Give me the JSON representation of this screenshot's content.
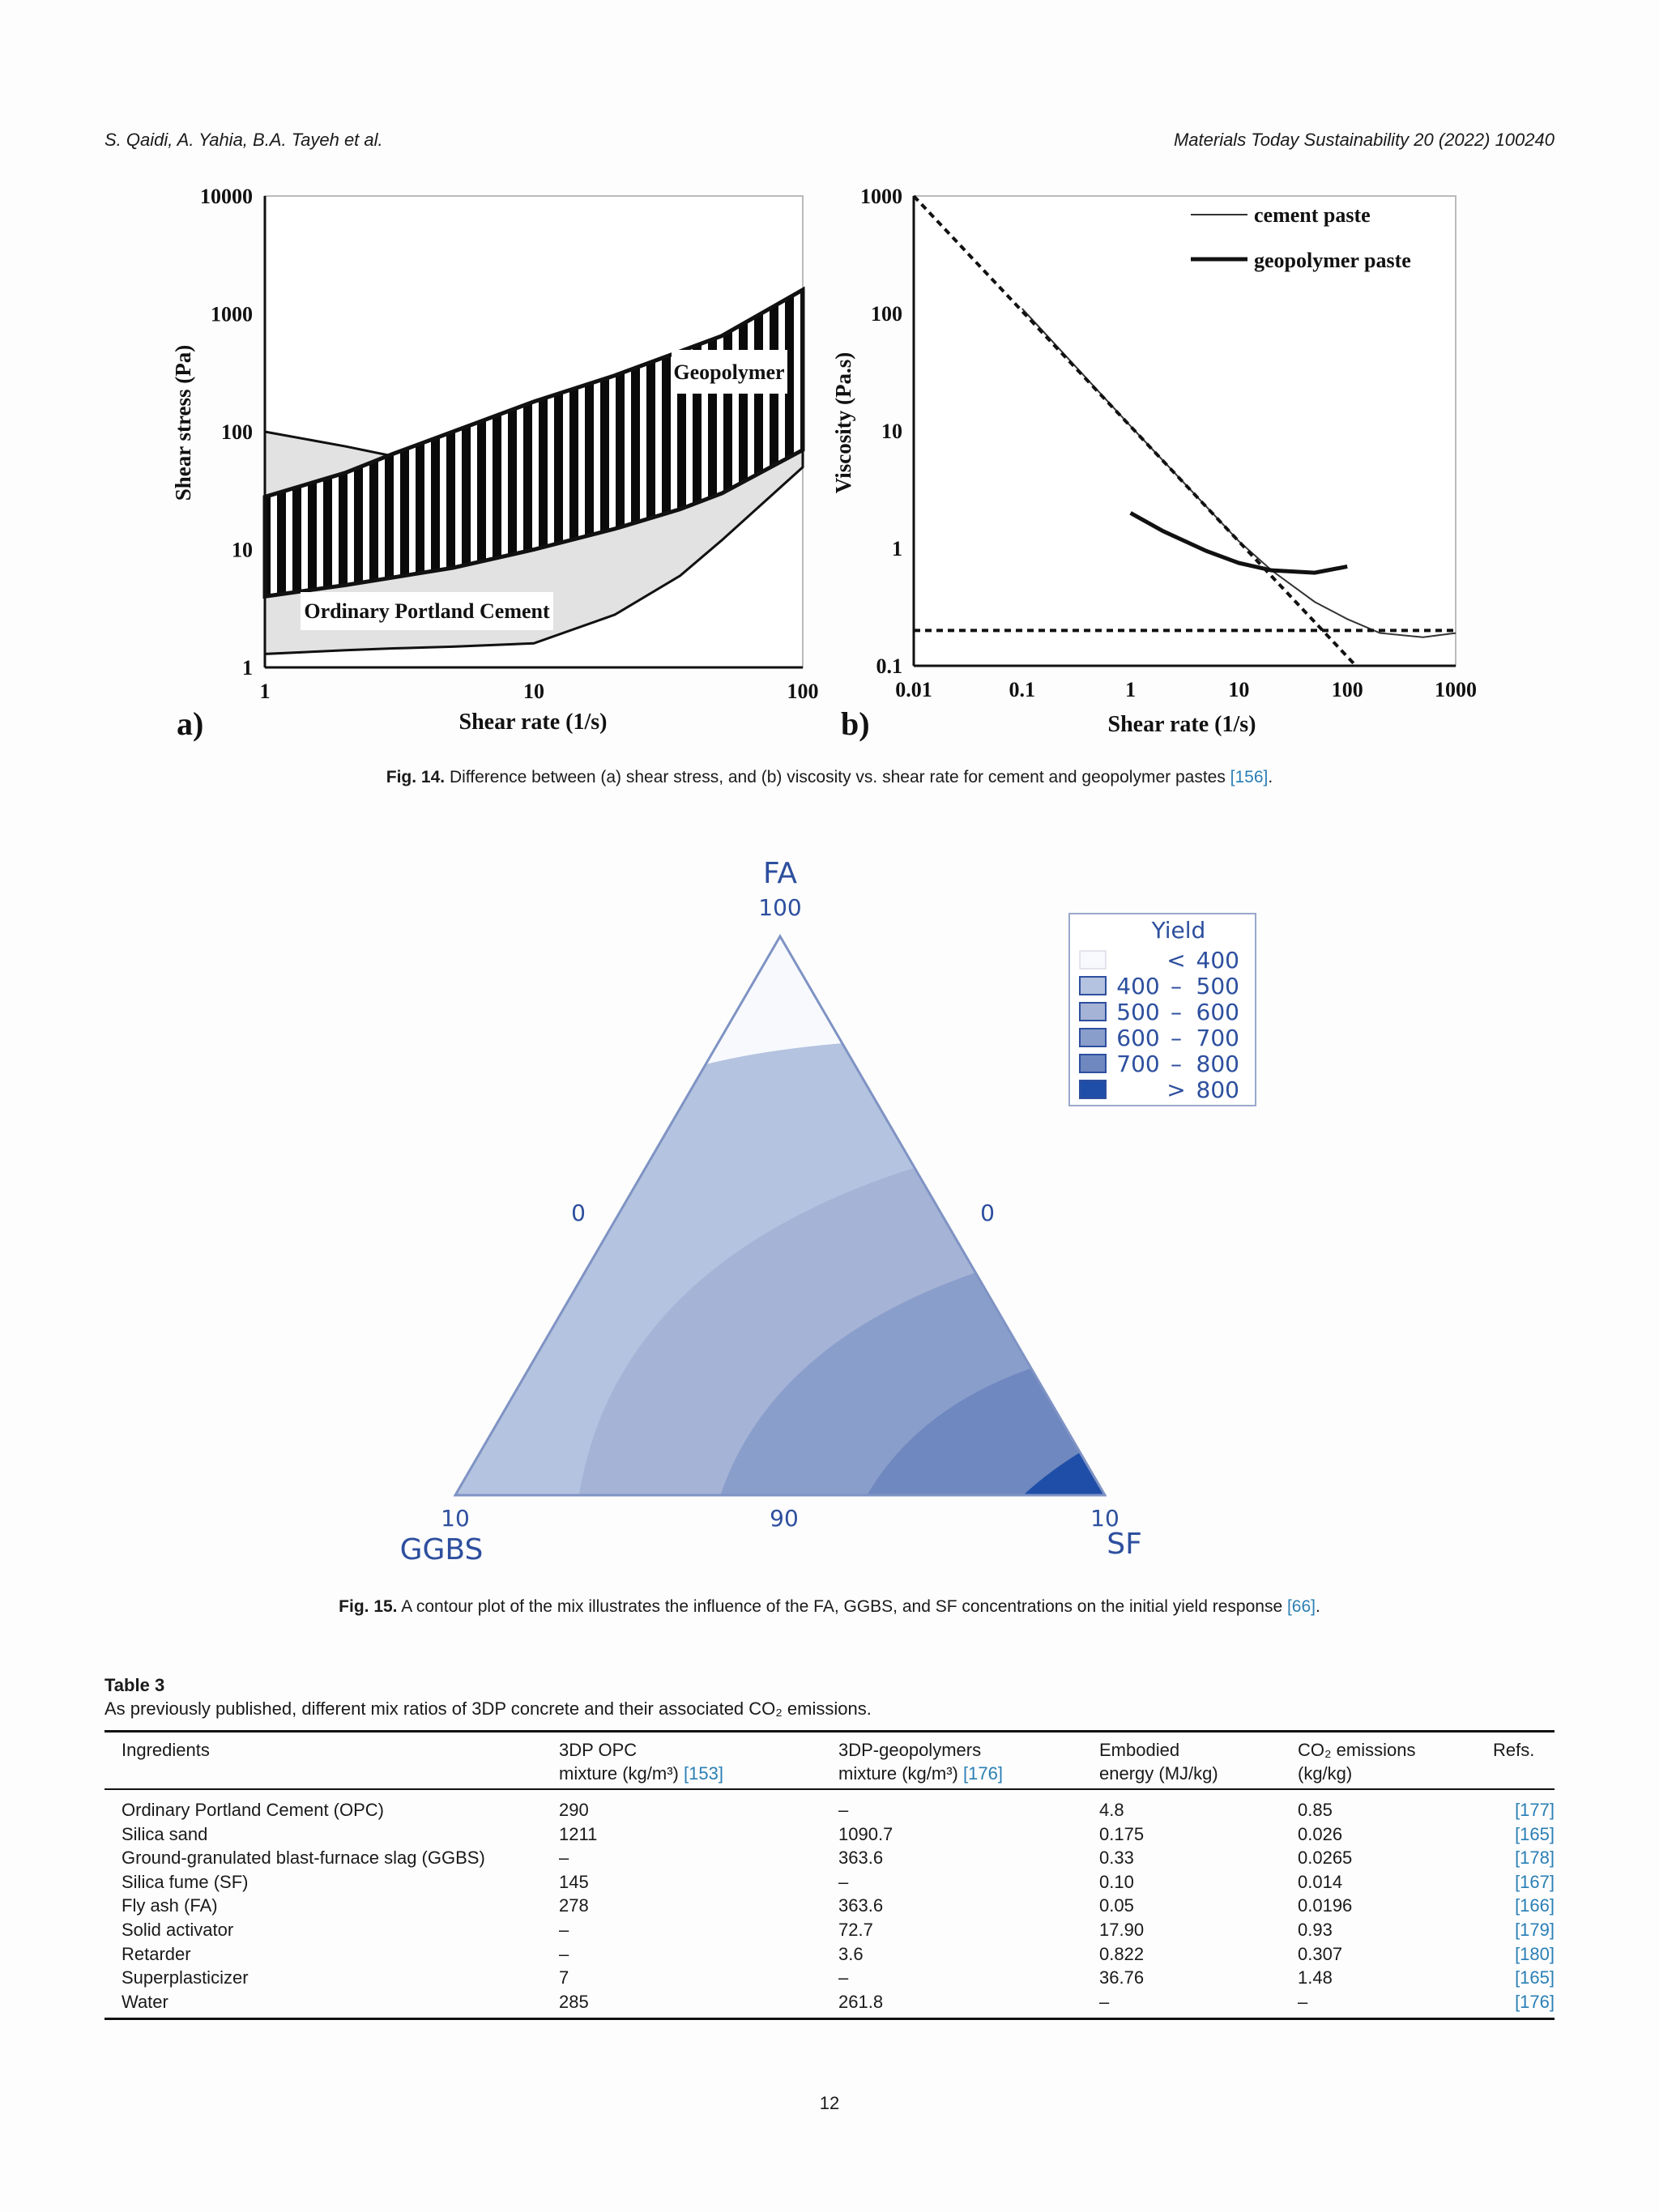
{
  "header": {
    "authors": "S. Qaidi, A. Yahia, B.A. Tayeh et al.",
    "journal": "Materials Today Sustainability 20 (2022) 100240"
  },
  "fig14": {
    "caption_label": "Fig. 14.",
    "caption_text": " Difference between (a) shear stress, and (b) viscosity vs. shear rate for cement and geopolymer pastes ",
    "caption_ref": "[156]",
    "caption_end": "."
  },
  "fig15": {
    "caption_label": "Fig. 15.",
    "caption_text": " A contour plot of the mix illustrates the influence of the FA, GGBS, and SF concentrations on the initial yield response ",
    "caption_ref": "[66]",
    "caption_end": "."
  },
  "chart_data": [
    {
      "type": "area",
      "panel_label": "a)",
      "title": "",
      "xlabel": "Shear rate (1/s)",
      "ylabel": "Shear stress (Pa)",
      "xscale": "log",
      "yscale": "log",
      "xlim": [
        1,
        100
      ],
      "ylim": [
        1,
        10000
      ],
      "xticks": [
        "1",
        "10",
        "100"
      ],
      "yticks": [
        "1",
        "10",
        "100",
        "1000",
        "10000"
      ],
      "bands": [
        {
          "name": "Ordinary Portland Cement",
          "fill": "#e2e2e2",
          "x": [
            1,
            2,
            3,
            5,
            10,
            20,
            35,
            50,
            100
          ],
          "upper": [
            100,
            75,
            62,
            62,
            65,
            80,
            100,
            115,
            180
          ],
          "lower": [
            1.3,
            1.4,
            1.45,
            1.5,
            1.6,
            2.8,
            6,
            12,
            50
          ]
        },
        {
          "name": "Geopolymer",
          "fill": "hatched",
          "x": [
            1,
            2,
            3,
            5,
            10,
            20,
            35,
            50,
            100
          ],
          "upper": [
            28,
            45,
            65,
            100,
            180,
            300,
            480,
            650,
            1600
          ],
          "lower": [
            4,
            5,
            5.8,
            7,
            10,
            15,
            22,
            30,
            70
          ]
        }
      ]
    },
    {
      "type": "line",
      "panel_label": "b)",
      "title": "",
      "xlabel": "Shear rate (1/s)",
      "ylabel": "Viscosity (Pa.s)",
      "xscale": "log",
      "yscale": "log",
      "xlim": [
        0.01,
        1000
      ],
      "ylim": [
        0.1,
        1000
      ],
      "xticks": [
        "0.01",
        "0.1",
        "1",
        "10",
        "100",
        "1000"
      ],
      "yticks": [
        "0.1",
        "1",
        "10",
        "100",
        "1000"
      ],
      "legend_position": "top-right",
      "series": [
        {
          "name": "cement paste",
          "style": "thin",
          "x": [
            0.1,
            1,
            10,
            20,
            50,
            100,
            200,
            500,
            1000
          ],
          "y": [
            110,
            11,
            1.15,
            0.65,
            0.35,
            0.25,
            0.19,
            0.175,
            0.19
          ]
        },
        {
          "name": "geopolymer paste",
          "style": "thick",
          "x": [
            1,
            2,
            5,
            10,
            20,
            50,
            100
          ],
          "y": [
            2,
            1.4,
            0.95,
            0.75,
            0.65,
            0.62,
            0.7
          ]
        },
        {
          "name": "",
          "style": "dashed",
          "x": [
            0.01,
            120
          ],
          "y": [
            1000,
            0.1
          ]
        },
        {
          "name": "",
          "style": "dashed",
          "x": [
            0.01,
            1000
          ],
          "y": [
            0.2,
            0.2
          ]
        }
      ]
    },
    {
      "type": "heatmap",
      "subtype": "ternary-contour",
      "axes": {
        "top": "FA",
        "left": "GGBS",
        "right": "SF"
      },
      "tick_labels": {
        "top": "100",
        "left_edge": "0",
        "right_edge": "0",
        "bottom_left": "10",
        "bottom_mid": "90",
        "bottom_right": "10"
      },
      "legend_title": "Yield",
      "levels": [
        {
          "range_low": "",
          "sep": "<",
          "range_high": "400",
          "color": "#f7f9fd"
        },
        {
          "range_low": "400",
          "sep": "–",
          "range_high": "500",
          "color": "#b4c3df"
        },
        {
          "range_low": "500",
          "sep": "–",
          "range_high": "600",
          "color": "#a5b3d6"
        },
        {
          "range_low": "600",
          "sep": "–",
          "range_high": "700",
          "color": "#8a9ecb"
        },
        {
          "range_low": "700",
          "sep": "–",
          "range_high": "800",
          "color": "#6f88bf"
        },
        {
          "range_low": "",
          "sep": ">",
          "range_high": "800",
          "color": "#1f4ea8"
        }
      ]
    }
  ],
  "table3": {
    "label": "Table 3",
    "caption": "As previously published, different mix ratios of 3DP concrete and their associated CO₂ emissions.",
    "headers": [
      {
        "l1": "Ingredients",
        "l2": "",
        "ref": ""
      },
      {
        "l1": "3DP OPC",
        "l2": "mixture (kg/m³) ",
        "ref": "[153]"
      },
      {
        "l1": "3DP-geopolymers",
        "l2": "mixture (kg/m³) ",
        "ref": "[176]"
      },
      {
        "l1": "Embodied",
        "l2": "energy (MJ/kg)",
        "ref": ""
      },
      {
        "l1": "CO₂ emissions",
        "l2": "(kg/kg)",
        "ref": ""
      },
      {
        "l1": "Refs.",
        "l2": "",
        "ref": ""
      }
    ],
    "rows": [
      [
        "Ordinary Portland Cement (OPC)",
        "290",
        "–",
        "4.8",
        "0.85",
        "[177]"
      ],
      [
        "Silica sand",
        "1211",
        "1090.7",
        "0.175",
        "0.026",
        "[165]"
      ],
      [
        "Ground-granulated blast-furnace slag (GGBS)",
        "–",
        "363.6",
        "0.33",
        "0.0265",
        "[178]"
      ],
      [
        "Silica fume (SF)",
        "145",
        "–",
        "0.10",
        "0.014",
        "[167]"
      ],
      [
        "Fly ash (FA)",
        "278",
        "363.6",
        "0.05",
        "0.0196",
        "[166]"
      ],
      [
        "Solid activator",
        "–",
        "72.7",
        "17.90",
        "0.93",
        "[179]"
      ],
      [
        "Retarder",
        "–",
        "3.6",
        "0.822",
        "0.307",
        "[180]"
      ],
      [
        "Superplasticizer",
        "7",
        "–",
        "36.76",
        "1.48",
        "[165]"
      ],
      [
        "Water",
        "285",
        "261.8",
        "–",
        "–",
        "[176]"
      ]
    ]
  },
  "page_number": "12",
  "colors": {
    "link": "#2a7fb5",
    "ternary_text": "#2d4f9e"
  }
}
